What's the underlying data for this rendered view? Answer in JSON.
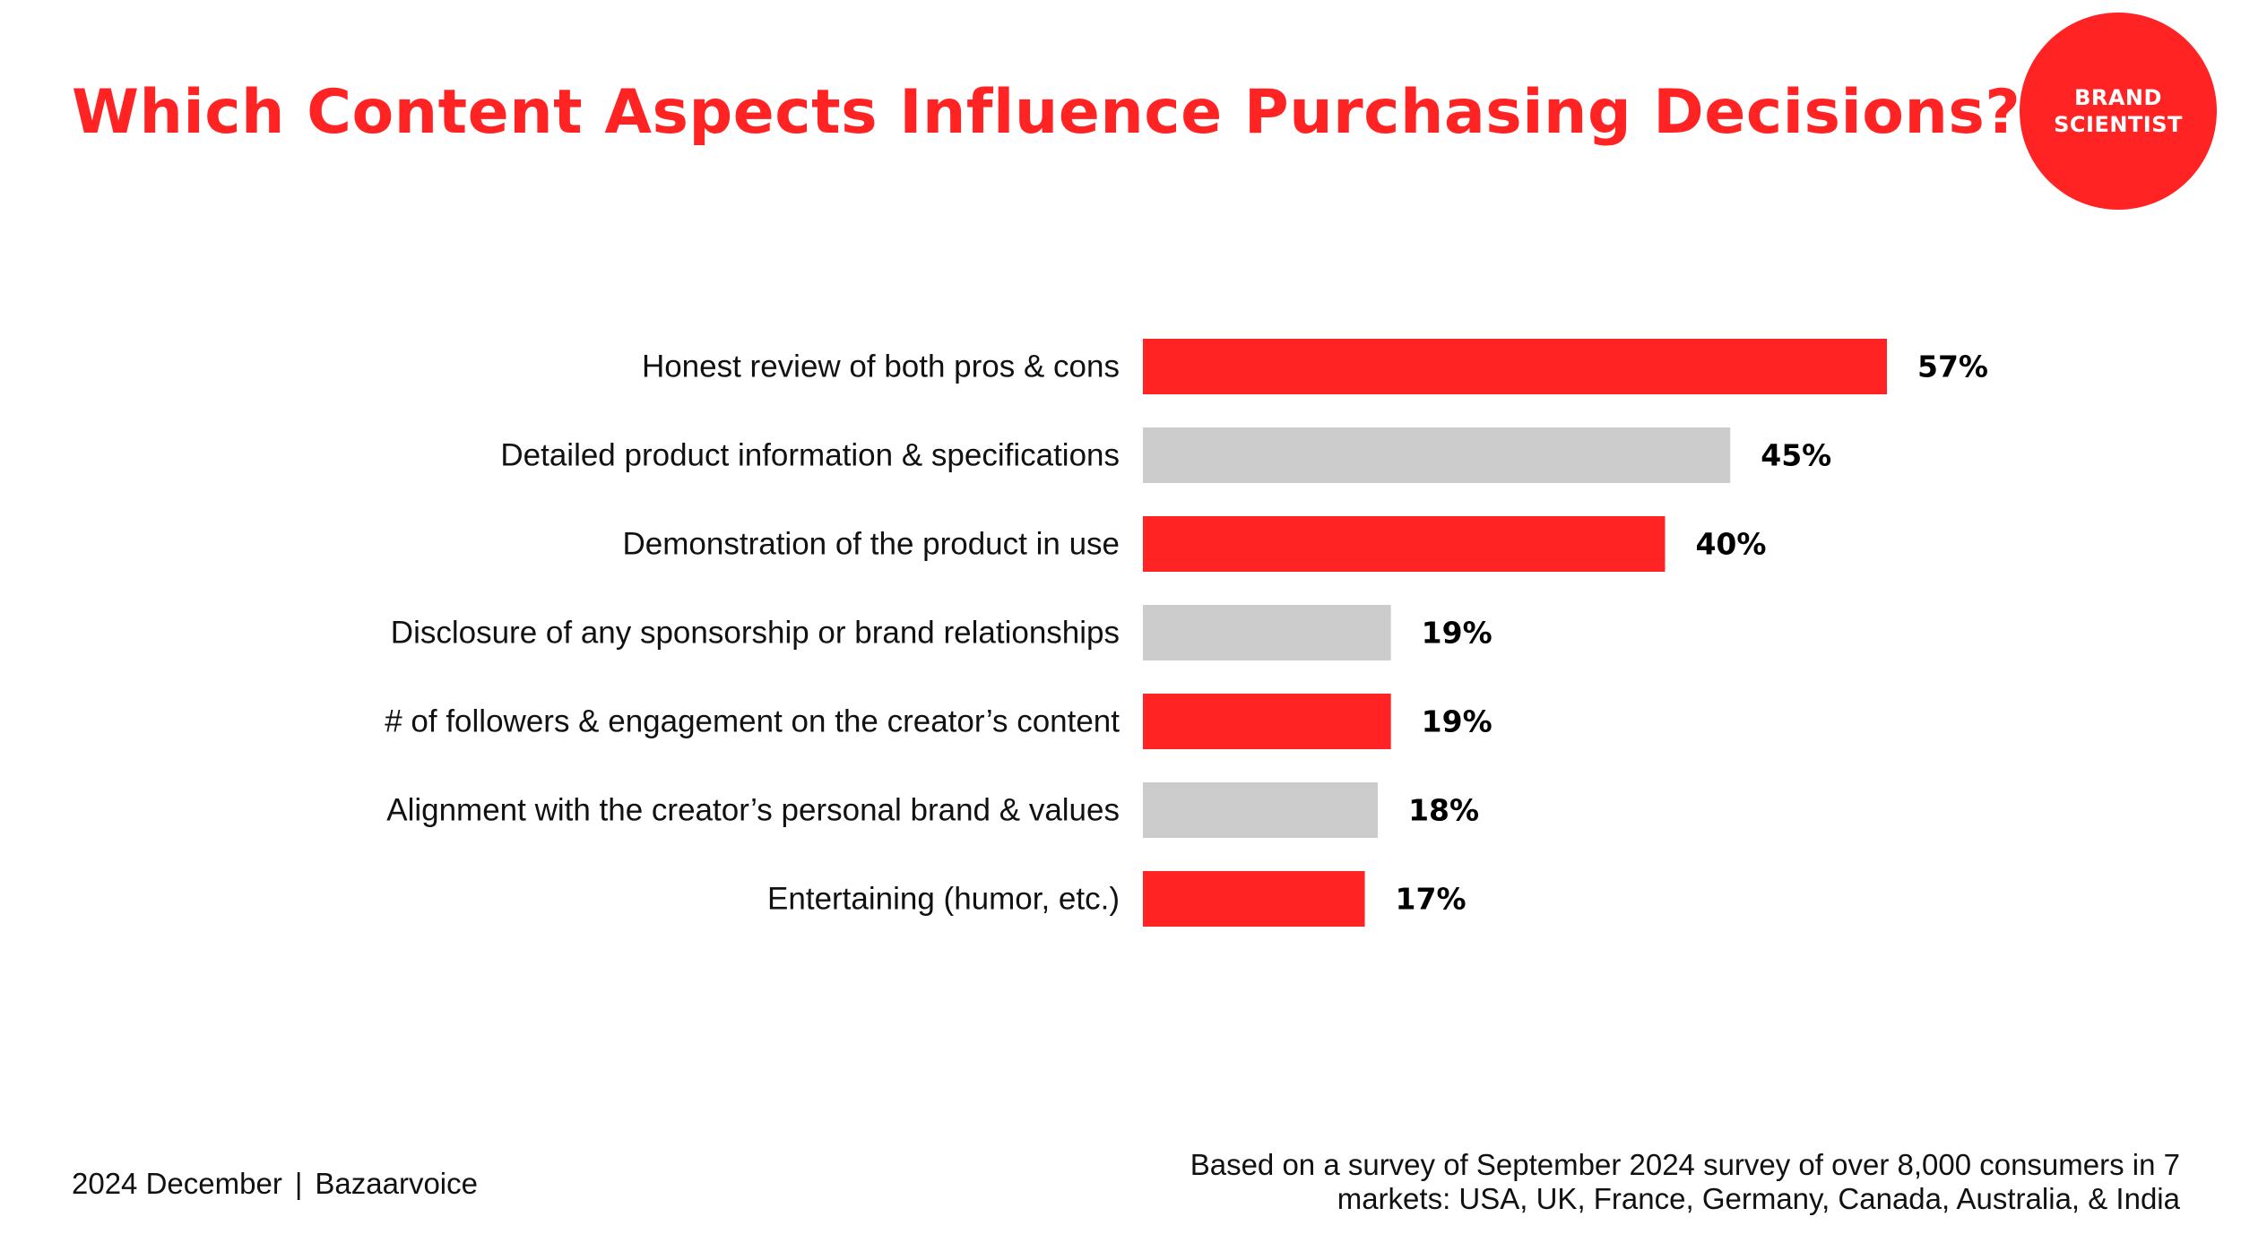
{
  "header": {
    "title": "Which Content Aspects Influence Purchasing Decisions?"
  },
  "logo": {
    "line1": "BRAND",
    "line2": "SCIENTIST"
  },
  "colors": {
    "accent": "#ff2323",
    "secondary": "#cccccc",
    "text": "#111111"
  },
  "chart_data": {
    "type": "bar",
    "orientation": "horizontal",
    "title": "Which Content Aspects Influence Purchasing Decisions?",
    "xlabel": "",
    "ylabel": "",
    "xlim": [
      0,
      57
    ],
    "grid": false,
    "categories": [
      "Honest review of both pros & cons",
      "Detailed product information & specifications",
      "Demonstration of the product in use",
      "Disclosure of any sponsorship or brand relationships",
      "# of followers & engagement on the creator’s content",
      "Alignment with the creator’s personal brand & values",
      "Entertaining (humor, etc.)"
    ],
    "values": [
      57,
      45,
      40,
      19,
      19,
      18,
      17
    ],
    "value_labels": [
      "57%",
      "45%",
      "40%",
      "19%",
      "19%",
      "18%",
      "17%"
    ],
    "bar_colors": [
      "#ff2323",
      "#cccccc",
      "#ff2323",
      "#cccccc",
      "#ff2323",
      "#cccccc",
      "#ff2323"
    ]
  },
  "footer": {
    "date": "2024 December",
    "separator": "|",
    "source": "Bazaarvoice",
    "note_line1": "Based on a survey of September 2024 survey of over 8,000 consumers in 7",
    "note_line2": "markets: USA, UK, France, Germany, Canada, Australia, & India"
  }
}
